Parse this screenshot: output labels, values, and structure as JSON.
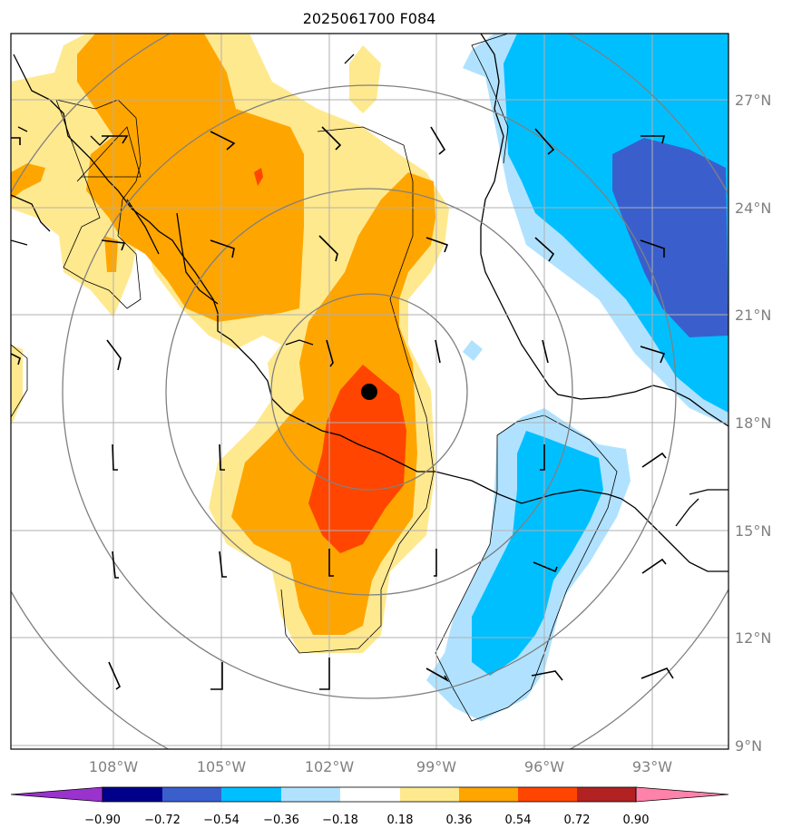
{
  "map": {
    "title": "2025061700 F084",
    "lon_labels": [
      "108°W",
      "105°W",
      "102°W",
      "99°W",
      "96°W",
      "93°W"
    ],
    "lat_labels": [
      "27°N",
      "24°N",
      "21°N",
      "18°N",
      "15°N",
      "12°N",
      "9°N"
    ],
    "center_marker": "storm-center-dot"
  },
  "colorbar": {
    "ticks": [
      "−0.90",
      "−0.72",
      "−0.54",
      "−0.36",
      "−0.18",
      "0.18",
      "0.36",
      "0.54",
      "0.72",
      "0.90"
    ],
    "colors": [
      "#9a32cd",
      "#00008b",
      "#3a5fcd",
      "#00bfff",
      "#b0e2ff",
      "#ffffff",
      "#ffe98f",
      "#ffa500",
      "#ff4500",
      "#b22222",
      "#ff82ab"
    ]
  },
  "palette": {
    "yellow": "#ffe98f",
    "orange": "#ffa500",
    "red_orange": "#ff4500",
    "light_blue": "#b0e2ff",
    "deep_sky_blue": "#00bfff",
    "royal_blue": "#3a5fcd"
  }
}
